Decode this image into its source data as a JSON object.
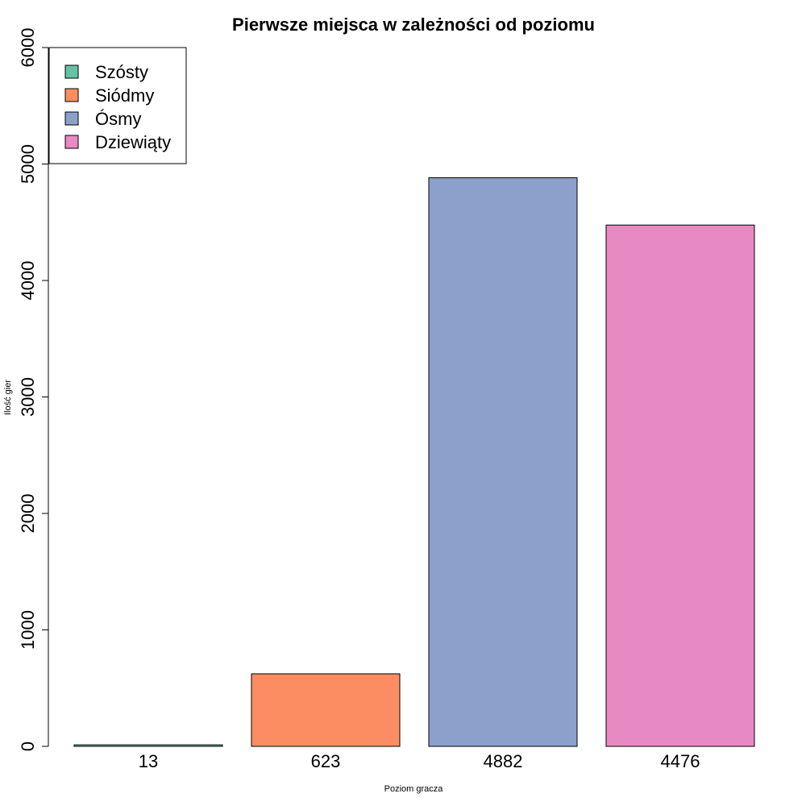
{
  "chart_data": {
    "type": "bar",
    "title": "Pierwsze miejsca w zależności od poziomu",
    "xlabel": "Poziom gracza",
    "ylabel": "Ilość gier",
    "ylim": [
      0,
      6000
    ],
    "y_ticks": [
      0,
      1000,
      2000,
      3000,
      4000,
      5000,
      6000
    ],
    "categories": [
      "13",
      "623",
      "4882",
      "4476"
    ],
    "values": [
      13,
      623,
      4882,
      4476
    ],
    "colors": [
      "#66C2A5",
      "#FC8D62",
      "#8DA0CB",
      "#E78AC3"
    ],
    "legend": {
      "position": "top-left",
      "entries": [
        {
          "label": "Szósty",
          "color": "#66C2A5"
        },
        {
          "label": "Siódmy",
          "color": "#FC8D62"
        },
        {
          "label": "Ósmy",
          "color": "#8DA0CB"
        },
        {
          "label": "Dziewiąty",
          "color": "#E78AC3"
        }
      ]
    },
    "grid": false
  }
}
